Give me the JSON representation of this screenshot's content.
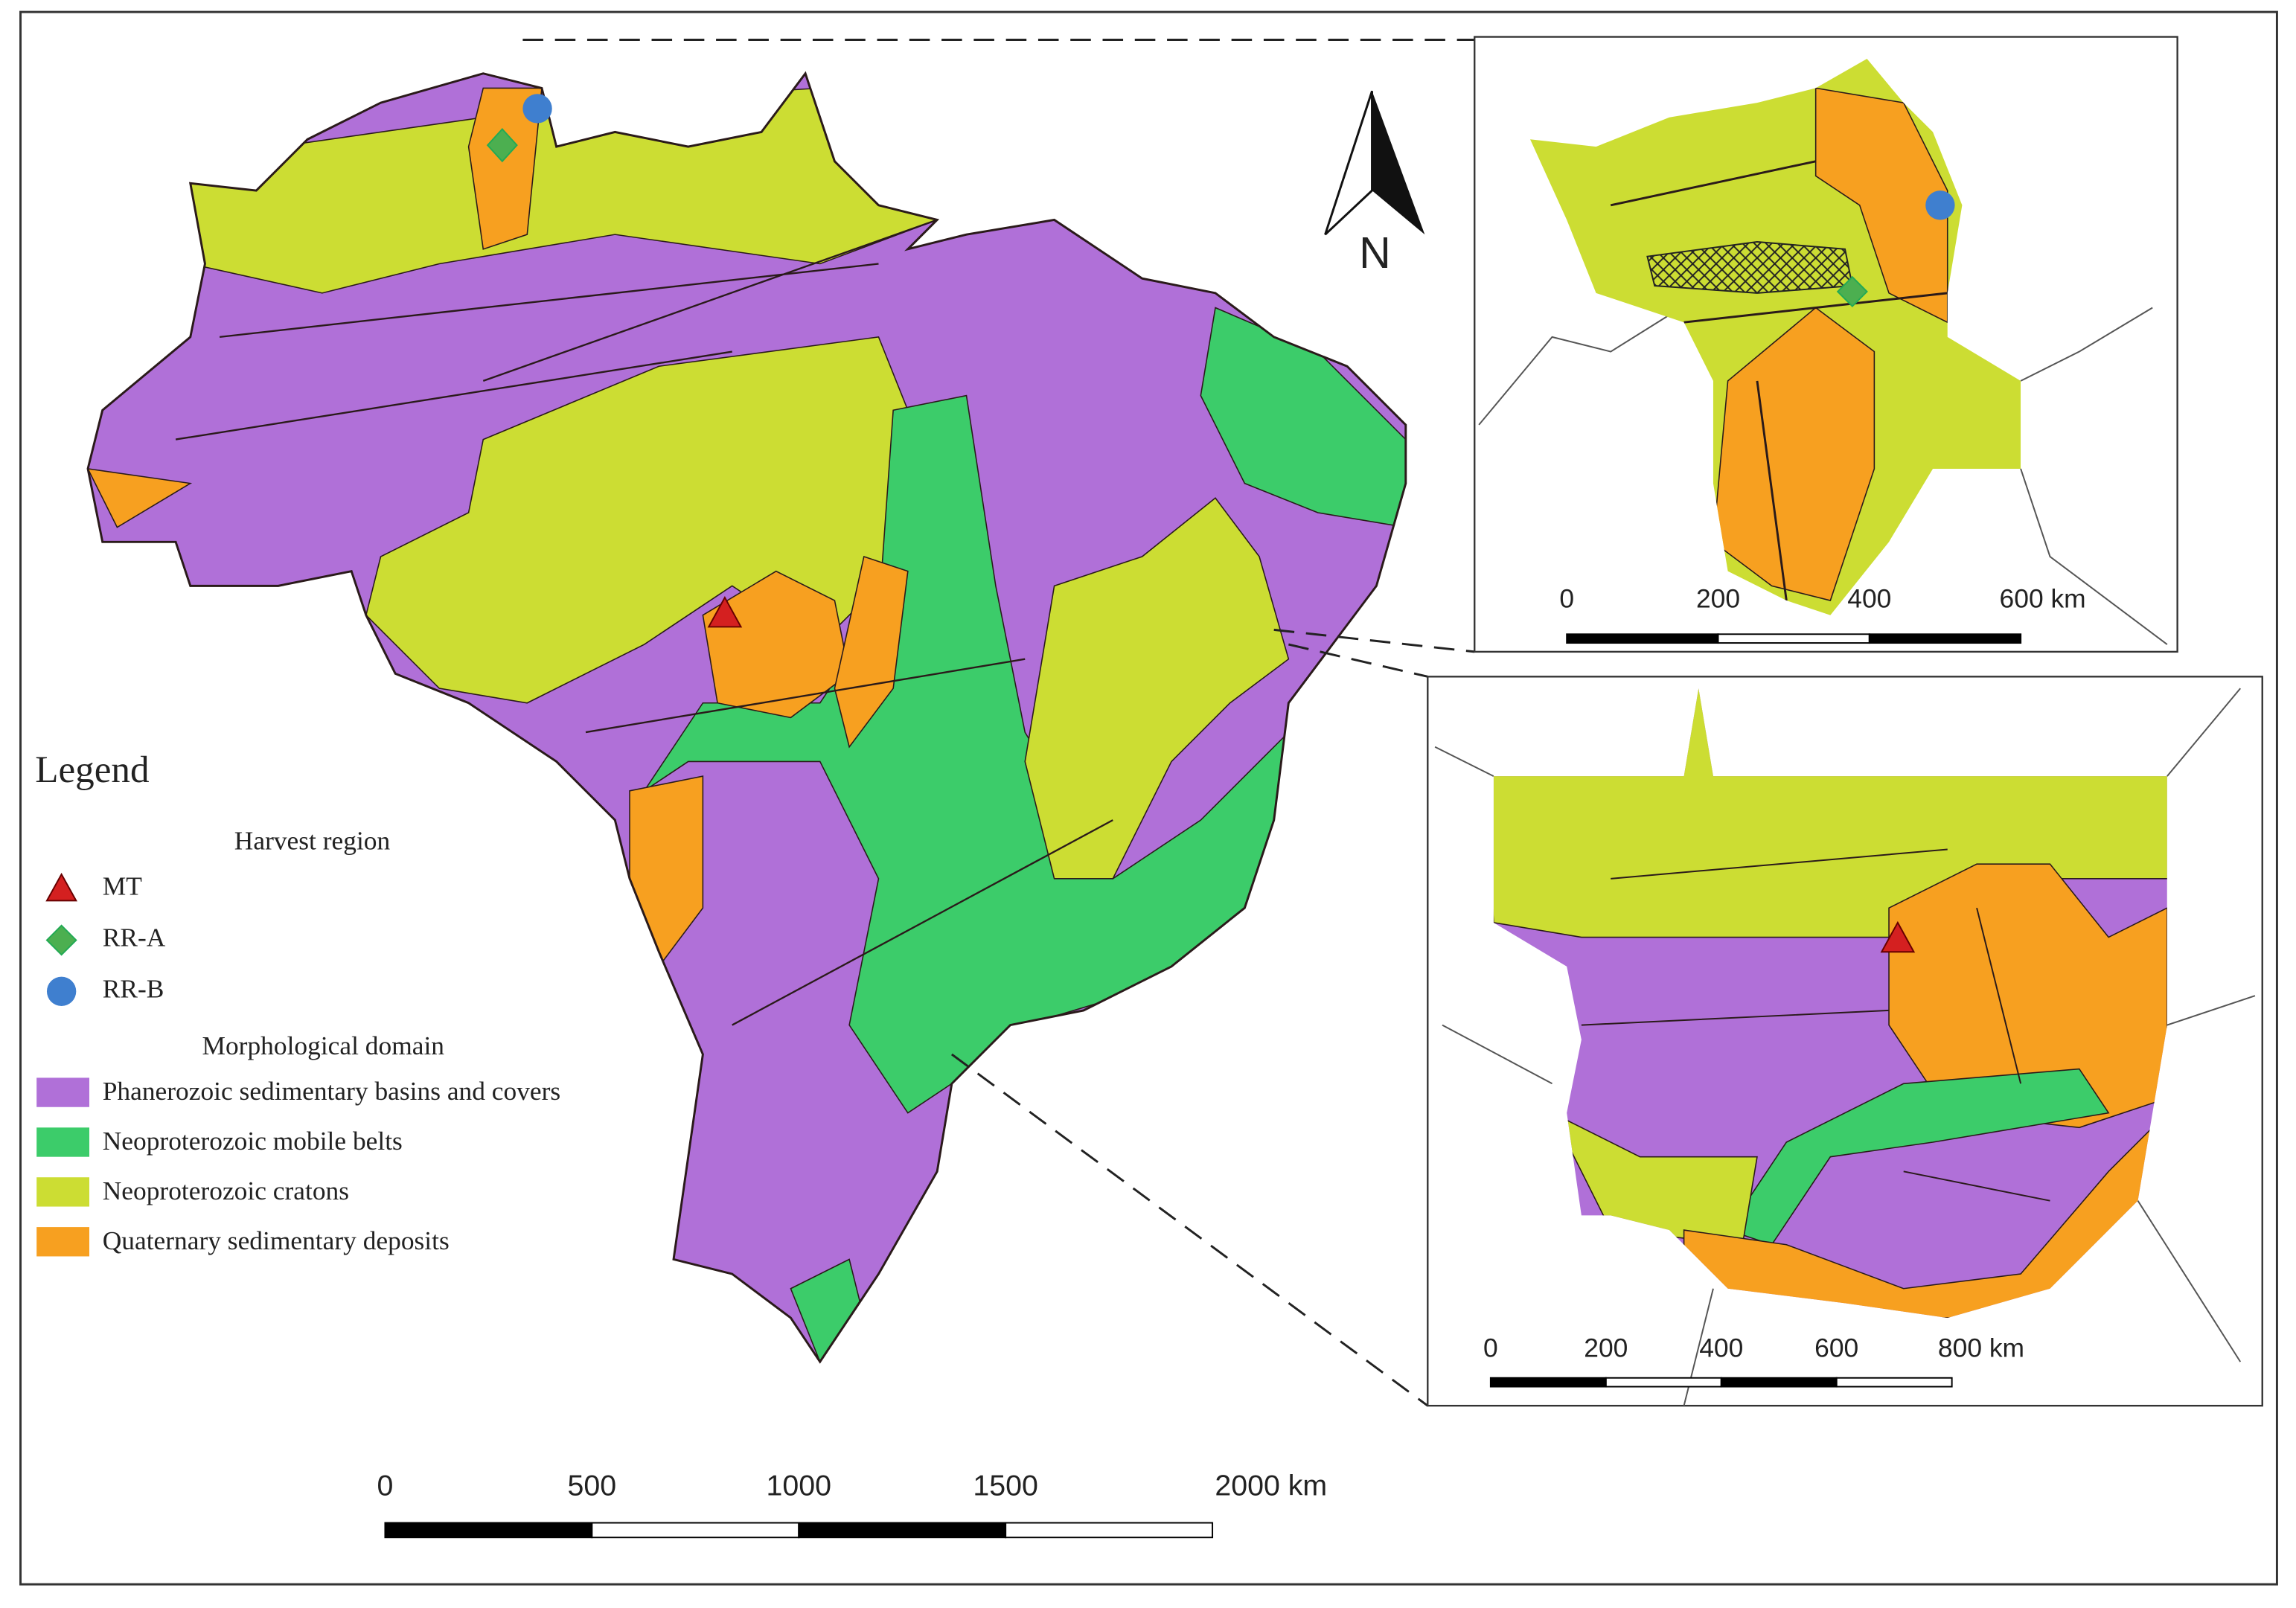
{
  "north": "N",
  "legend": {
    "title": "Legend",
    "harvest_title": "Harvest region",
    "harvest": [
      "MT",
      "RR-A",
      "RR-B"
    ],
    "domain_title": "Morphological domain",
    "domains": [
      "Phanerozoic sedimentary basins and covers",
      "Neoproterozoic mobile belts",
      "Neoproterozoic cratons",
      "Quaternary sedimentary deposits"
    ]
  },
  "main_scale": {
    "labels": [
      "0",
      "500",
      "1000",
      "1500",
      "2000 km"
    ]
  },
  "inset_rr_scale": {
    "labels": [
      "0",
      "200",
      "400",
      "600 km"
    ]
  },
  "inset_mt_scale": {
    "labels": [
      "0",
      "200",
      "400",
      "600",
      "800 km"
    ]
  }
}
